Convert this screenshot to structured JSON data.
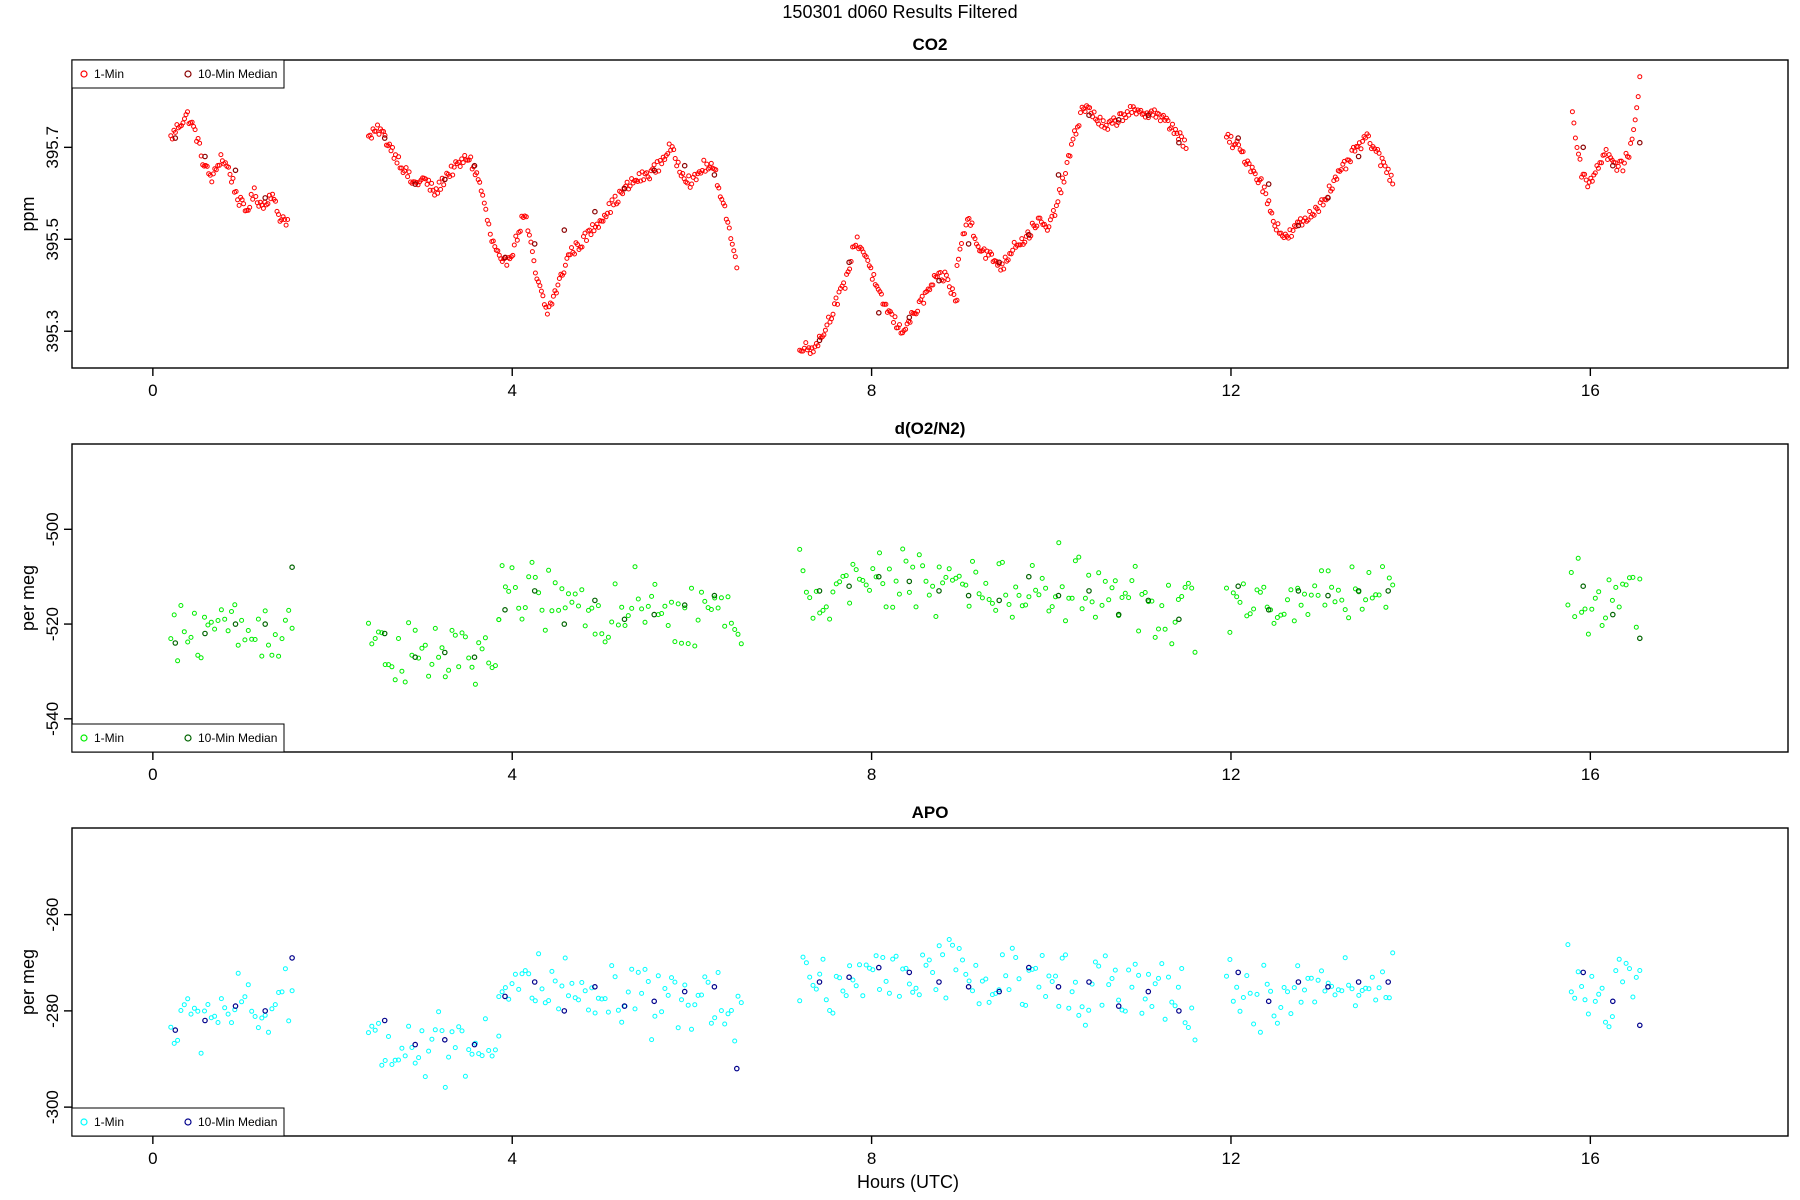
{
  "chart_data": {
    "type": "scatter",
    "title": "150301   d060   Results Filtered",
    "xlabel": "Hours (UTC)",
    "xlim": [
      -0.9,
      18.2
    ],
    "xticks": [
      0,
      4,
      8,
      12,
      16
    ],
    "panels": [
      {
        "title": "CO2",
        "ylabel": "ppm",
        "ylim": [
          395.22,
          395.89
        ],
        "yticks": [
          395.3,
          395.5,
          395.7
        ],
        "ytick_labels": [
          "395.3",
          "395.5",
          "395.7"
        ],
        "legend_position": "top-left",
        "series": [
          {
            "name": "1-Min",
            "color": "#ff0000",
            "segments": [
              {
                "start": 0.2,
                "end": 1.5,
                "values": [
                  395.72,
                  395.75,
                  395.77,
                  395.73,
                  395.66,
                  395.63,
                  395.68,
                  395.65,
                  395.59,
                  395.56,
                  395.6,
                  395.57,
                  395.6,
                  395.55,
                  395.54
                ]
              },
              {
                "start": 2.4,
                "end": 6.5,
                "values": [
                  395.72,
                  395.74,
                  395.7,
                  395.66,
                  395.62,
                  395.63,
                  395.6,
                  395.64,
                  395.66,
                  395.68,
                  395.62,
                  395.5,
                  395.44,
                  395.48,
                  395.56,
                  395.42,
                  395.34,
                  395.4,
                  395.47,
                  395.49,
                  395.52,
                  395.55,
                  395.58,
                  395.61,
                  395.63,
                  395.64,
                  395.66,
                  395.7,
                  395.65,
                  395.62,
                  395.66,
                  395.65,
                  395.56,
                  395.44
                ]
              },
              {
                "start": 7.2,
                "end": 8.95,
                "values": [
                  395.27,
                  395.26,
                  395.29,
                  395.35,
                  395.4,
                  395.5,
                  395.46,
                  395.38,
                  395.34,
                  395.3,
                  395.33,
                  395.37,
                  395.41,
                  395.42,
                  395.36
                ]
              },
              {
                "start": 8.95,
                "end": 11.5,
                "values": [
                  395.45,
                  395.55,
                  395.48,
                  395.46,
                  395.44,
                  395.49,
                  395.5,
                  395.54,
                  395.52,
                  395.6,
                  395.7,
                  395.79,
                  395.77,
                  395.74,
                  395.76,
                  395.78,
                  395.77,
                  395.78,
                  395.76,
                  395.74,
                  395.7
                ]
              },
              {
                "start": 11.95,
                "end": 13.8,
                "values": [
                  395.72,
                  395.7,
                  395.66,
                  395.62,
                  395.54,
                  395.5,
                  395.53,
                  395.55,
                  395.58,
                  395.62,
                  395.66,
                  395.7,
                  395.72,
                  395.67,
                  395.63
                ]
              },
              {
                "start": 15.8,
                "end": 16.55,
                "values": [
                  395.78,
                  395.65,
                  395.62,
                  395.66,
                  395.69,
                  395.66,
                  395.66,
                  395.7,
                  395.85
                ]
              }
            ]
          },
          {
            "name": "10-Min Median",
            "color": "#8b0000",
            "points": [
              [
                0.25,
                395.72
              ],
              [
                0.58,
                395.68
              ],
              [
                0.92,
                395.65
              ],
              [
                1.25,
                395.59
              ],
              [
                2.58,
                395.72
              ],
              [
                2.92,
                395.62
              ],
              [
                3.25,
                395.63
              ],
              [
                3.58,
                395.66
              ],
              [
                3.92,
                395.46
              ],
              [
                4.25,
                395.49
              ],
              [
                4.58,
                395.52
              ],
              [
                4.92,
                395.56
              ],
              [
                5.25,
                395.61
              ],
              [
                5.58,
                395.65
              ],
              [
                5.92,
                395.66
              ],
              [
                6.25,
                395.64
              ],
              [
                7.42,
                395.28
              ],
              [
                7.75,
                395.45
              ],
              [
                8.08,
                395.34
              ],
              [
                8.42,
                395.33
              ],
              [
                8.75,
                395.41
              ],
              [
                9.08,
                395.49
              ],
              [
                9.42,
                395.45
              ],
              [
                9.75,
                395.51
              ],
              [
                10.08,
                395.64
              ],
              [
                10.42,
                395.77
              ],
              [
                10.75,
                395.76
              ],
              [
                11.08,
                395.77
              ],
              [
                11.42,
                395.71
              ],
              [
                12.08,
                395.72
              ],
              [
                12.42,
                395.62
              ],
              [
                12.75,
                395.53
              ],
              [
                13.08,
                395.59
              ],
              [
                13.42,
                395.68
              ],
              [
                15.92,
                395.7
              ],
              [
                16.25,
                395.66
              ],
              [
                16.55,
                395.71
              ]
            ]
          }
        ]
      },
      {
        "title": "d(O2/N2)",
        "ylabel": "per meg",
        "ylim": [
          -547,
          -482
        ],
        "yticks": [
          -540,
          -520,
          -500
        ],
        "ytick_labels": [
          "-540",
          "-520",
          "-500"
        ],
        "legend_position": "bottom-left",
        "series": [
          {
            "name": "1-Min",
            "color": "#00ee00",
            "segments": [
              {
                "start": 0.2,
                "end": 1.55,
                "mean": [
                  -524,
                  -522,
                  -520,
                  -520,
                  -522,
                  -521,
                  -520
                ]
              },
              {
                "start": 2.4,
                "end": 3.85,
                "mean": [
                  -522,
                  -525,
                  -528,
                  -527,
                  -526,
                  -527,
                  -524
                ]
              },
              {
                "start": 3.85,
                "end": 6.55,
                "mean": [
                  -516,
                  -513,
                  -516,
                  -518,
                  -517,
                  -518,
                  -519,
                  -517,
                  -520
                ]
              },
              {
                "start": 7.2,
                "end": 11.6,
                "mean": [
                  -512,
                  -514,
                  -512,
                  -511,
                  -510,
                  -512,
                  -514,
                  -513,
                  -511,
                  -514,
                  -515,
                  -516,
                  -518
                ]
              },
              {
                "start": 11.95,
                "end": 13.8,
                "mean": [
                  -514,
                  -518,
                  -516,
                  -512,
                  -514,
                  -512
                ]
              },
              {
                "start": 15.75,
                "end": 16.55,
                "mean": [
                  -510,
                  -516,
                  -518,
                  -512,
                  -513
                ]
              }
            ]
          },
          {
            "name": "10-Min Median",
            "color": "#006400",
            "points": [
              [
                0.25,
                -524
              ],
              [
                0.58,
                -522
              ],
              [
                0.92,
                -520
              ],
              [
                1.25,
                -520
              ],
              [
                1.55,
                -508
              ],
              [
                2.58,
                -522
              ],
              [
                2.92,
                -527
              ],
              [
                3.25,
                -526
              ],
              [
                3.58,
                -527
              ],
              [
                3.92,
                -517
              ],
              [
                4.25,
                -513
              ],
              [
                4.58,
                -520
              ],
              [
                4.92,
                -515
              ],
              [
                5.25,
                -519
              ],
              [
                5.58,
                -518
              ],
              [
                5.92,
                -516
              ],
              [
                6.25,
                -514
              ],
              [
                7.42,
                -513
              ],
              [
                7.75,
                -512
              ],
              [
                8.08,
                -510
              ],
              [
                8.42,
                -511
              ],
              [
                8.75,
                -513
              ],
              [
                9.08,
                -514
              ],
              [
                9.42,
                -515
              ],
              [
                9.75,
                -510
              ],
              [
                10.08,
                -514
              ],
              [
                10.42,
                -513
              ],
              [
                10.75,
                -518
              ],
              [
                11.08,
                -515
              ],
              [
                11.42,
                -519
              ],
              [
                12.08,
                -512
              ],
              [
                12.42,
                -517
              ],
              [
                12.75,
                -513
              ],
              [
                13.08,
                -514
              ],
              [
                13.42,
                -513
              ],
              [
                13.75,
                -513
              ],
              [
                15.92,
                -512
              ],
              [
                16.25,
                -518
              ],
              [
                16.55,
                -523
              ]
            ]
          }
        ]
      },
      {
        "title": "APO",
        "ylabel": "per meg",
        "ylim": [
          -306,
          -242
        ],
        "yticks": [
          -300,
          -280,
          -260
        ],
        "ytick_labels": [
          "-300",
          "-280",
          "-260"
        ],
        "legend_position": "bottom-left",
        "series": [
          {
            "name": "1-Min",
            "color": "#00ffff",
            "segments": [
              {
                "start": 0.2,
                "end": 1.55,
                "mean": [
                  -284,
                  -282,
                  -280,
                  -279,
                  -281,
                  -280,
                  -279
                ]
              },
              {
                "start": 2.4,
                "end": 3.85,
                "mean": [
                  -283,
                  -286,
                  -288,
                  -287,
                  -286,
                  -287,
                  -284
                ]
              },
              {
                "start": 3.85,
                "end": 6.55,
                "mean": [
                  -277,
                  -274,
                  -277,
                  -279,
                  -278,
                  -279,
                  -280,
                  -277,
                  -279
                ]
              },
              {
                "start": 7.2,
                "end": 11.6,
                "mean": [
                  -273,
                  -275,
                  -273,
                  -272,
                  -271,
                  -273,
                  -275,
                  -274,
                  -272,
                  -275,
                  -276,
                  -277,
                  -279
                ]
              },
              {
                "start": 11.95,
                "end": 13.8,
                "mean": [
                  -274,
                  -279,
                  -277,
                  -273,
                  -275,
                  -273
                ]
              },
              {
                "start": 15.75,
                "end": 16.55,
                "mean": [
                  -271,
                  -277,
                  -279,
                  -273,
                  -274
                ]
              }
            ]
          },
          {
            "name": "10-Min Median",
            "color": "#00008b",
            "points": [
              [
                0.25,
                -284
              ],
              [
                0.58,
                -282
              ],
              [
                0.92,
                -279
              ],
              [
                1.25,
                -280
              ],
              [
                1.55,
                -269
              ],
              [
                2.58,
                -282
              ],
              [
                2.92,
                -287
              ],
              [
                3.25,
                -286
              ],
              [
                3.58,
                -287
              ],
              [
                3.92,
                -277
              ],
              [
                4.25,
                -274
              ],
              [
                4.58,
                -280
              ],
              [
                4.92,
                -275
              ],
              [
                5.25,
                -279
              ],
              [
                5.58,
                -278
              ],
              [
                5.92,
                -276
              ],
              [
                6.25,
                -275
              ],
              [
                6.5,
                -292
              ],
              [
                7.42,
                -274
              ],
              [
                7.75,
                -273
              ],
              [
                8.08,
                -271
              ],
              [
                8.42,
                -272
              ],
              [
                8.75,
                -274
              ],
              [
                9.08,
                -275
              ],
              [
                9.42,
                -276
              ],
              [
                9.75,
                -271
              ],
              [
                10.08,
                -275
              ],
              [
                10.42,
                -274
              ],
              [
                10.75,
                -279
              ],
              [
                11.08,
                -276
              ],
              [
                11.42,
                -280
              ],
              [
                12.08,
                -272
              ],
              [
                12.42,
                -278
              ],
              [
                12.75,
                -274
              ],
              [
                13.08,
                -275
              ],
              [
                13.42,
                -274
              ],
              [
                13.75,
                -274
              ],
              [
                15.92,
                -272
              ],
              [
                16.25,
                -278
              ],
              [
                16.55,
                -283
              ]
            ]
          }
        ]
      }
    ]
  }
}
